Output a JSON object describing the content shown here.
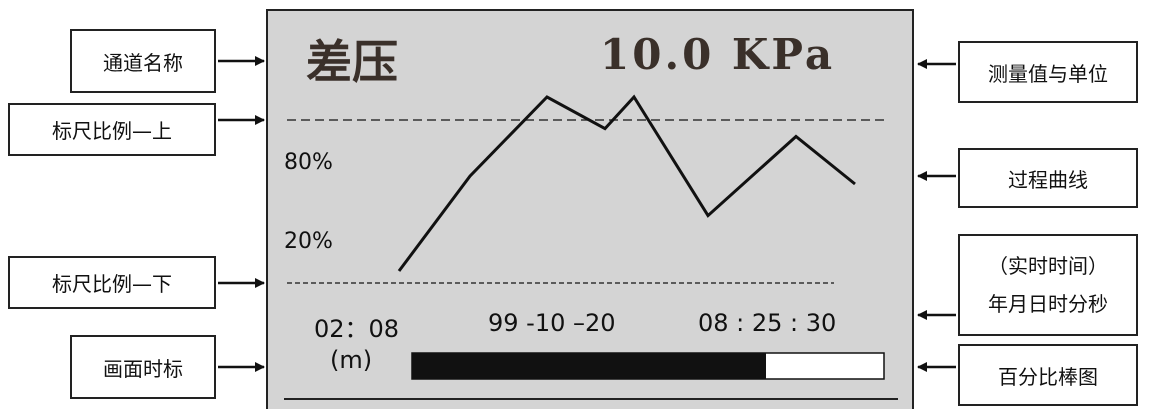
{
  "screen": {
    "channel_name": "差压",
    "measurement": "10.0  KPa",
    "scale_upper_label": "80%",
    "scale_lower_label": "20%",
    "time_span": "02：08",
    "time_unit": "(m)",
    "date": "99 -10 –20",
    "time": "08 : 25 : 30",
    "bar_fill_fraction": 0.75
  },
  "callouts": {
    "channel_name": "通道名称",
    "scale_upper": "标尺比例—上",
    "scale_lower": "标尺比例—下",
    "screen_time_scale": "画面时标",
    "measured_value": "测量值与单位",
    "process_curve": "过程曲线",
    "realtime_line1": "（实时时间）",
    "realtime_line2": "年月日时分秒",
    "percent_bar": "百分比棒图"
  },
  "curve_points": [
    [
      0,
      5
    ],
    [
      1,
      17
    ],
    [
      2,
      27
    ],
    [
      3,
      23
    ],
    [
      4,
      27
    ],
    [
      5,
      12
    ],
    [
      6,
      22
    ],
    [
      7,
      16
    ]
  ]
}
